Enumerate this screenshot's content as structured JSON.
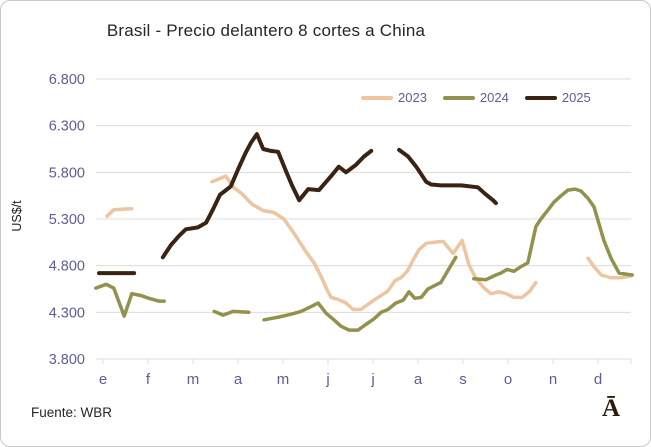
{
  "frame": {
    "source_text": "Fuente: WBR",
    "watermark": "Ā"
  },
  "chart_data": {
    "type": "line",
    "title": "Brasil - Precio delantero 8 cortes a China",
    "xlabel": "",
    "ylabel": "US$/t",
    "units": "US$ per tonne, thousands separator shown with dot",
    "grid": true,
    "legend_position": "top-right",
    "x_tick_labels": [
      "e",
      "f",
      "m",
      "a",
      "m",
      "j",
      "j",
      "a",
      "s",
      "o",
      "n",
      "d"
    ],
    "y_ticks": [
      {
        "label": "6.800",
        "value": 6800
      },
      {
        "label": "6.300",
        "value": 6300
      },
      {
        "label": "5.800",
        "value": 5800
      },
      {
        "label": "5.300",
        "value": 5300
      },
      {
        "label": "4.800",
        "value": 4800
      },
      {
        "label": "4.300",
        "value": 4300
      },
      {
        "label": "3.800",
        "value": 3800
      }
    ],
    "ylim": [
      3800,
      6800
    ],
    "xlim_months": [
      -0.2,
      11.8
    ],
    "colors": {
      "tick_text": "#5e5d95",
      "grid_line": "#dcdcdc",
      "title_text": "#262626"
    },
    "series": [
      {
        "name": "2023",
        "color": "#edc5a1",
        "segments": [
          [
            [
              0.09,
              5330
            ],
            [
              0.24,
              5400
            ],
            [
              0.64,
              5410
            ]
          ],
          [
            [
              2.42,
              5700
            ],
            [
              2.58,
              5730
            ],
            [
              2.73,
              5760
            ],
            [
              2.9,
              5640
            ],
            [
              3.09,
              5570
            ],
            [
              3.31,
              5460
            ],
            [
              3.56,
              5390
            ],
            [
              3.8,
              5370
            ],
            [
              4.02,
              5300
            ],
            [
              4.24,
              5150
            ],
            [
              4.51,
              4950
            ],
            [
              4.69,
              4830
            ],
            [
              4.84,
              4690
            ],
            [
              4.98,
              4540
            ],
            [
              5.07,
              4460
            ],
            [
              5.22,
              4440
            ],
            [
              5.4,
              4400
            ],
            [
              5.56,
              4330
            ],
            [
              5.73,
              4330
            ],
            [
              5.87,
              4380
            ],
            [
              6.02,
              4430
            ],
            [
              6.18,
              4480
            ],
            [
              6.33,
              4530
            ],
            [
              6.49,
              4640
            ],
            [
              6.62,
              4670
            ],
            [
              6.76,
              4740
            ],
            [
              6.89,
              4860
            ],
            [
              7.02,
              4970
            ],
            [
              7.18,
              5040
            ],
            [
              7.36,
              5050
            ],
            [
              7.56,
              5060
            ],
            [
              7.78,
              4930
            ],
            [
              7.98,
              5070
            ],
            [
              8.13,
              4810
            ],
            [
              8.29,
              4660
            ],
            [
              8.47,
              4560
            ],
            [
              8.62,
              4500
            ],
            [
              8.8,
              4520
            ],
            [
              8.96,
              4500
            ],
            [
              9.13,
              4460
            ],
            [
              9.31,
              4460
            ],
            [
              9.47,
              4520
            ],
            [
              9.62,
              4620
            ]
          ],
          [
            [
              10.78,
              4880
            ],
            [
              10.91,
              4790
            ],
            [
              11.07,
              4700
            ],
            [
              11.29,
              4670
            ],
            [
              11.51,
              4670
            ],
            [
              11.73,
              4690
            ]
          ]
        ]
      },
      {
        "name": "2024",
        "color": "#92914e",
        "segments": [
          [
            [
              -0.16,
              4560
            ],
            [
              0.07,
              4600
            ],
            [
              0.24,
              4560
            ],
            [
              0.47,
              4260
            ],
            [
              0.64,
              4500
            ],
            [
              0.84,
              4480
            ],
            [
              1.02,
              4450
            ],
            [
              1.24,
              4420
            ],
            [
              1.36,
              4420
            ]
          ],
          [
            [
              2.47,
              4310
            ],
            [
              2.67,
              4270
            ],
            [
              2.89,
              4310
            ],
            [
              3.24,
              4300
            ]
          ],
          [
            [
              3.58,
              4220
            ],
            [
              3.91,
              4250
            ],
            [
              4.18,
              4280
            ],
            [
              4.4,
              4310
            ],
            [
              4.62,
              4360
            ],
            [
              4.78,
              4400
            ],
            [
              4.96,
              4290
            ],
            [
              5.13,
              4220
            ],
            [
              5.29,
              4150
            ],
            [
              5.47,
              4110
            ],
            [
              5.67,
              4110
            ],
            [
              5.84,
              4170
            ],
            [
              6.02,
              4230
            ],
            [
              6.18,
              4300
            ],
            [
              6.33,
              4330
            ],
            [
              6.51,
              4400
            ],
            [
              6.67,
              4430
            ],
            [
              6.8,
              4520
            ],
            [
              6.93,
              4450
            ],
            [
              7.07,
              4460
            ],
            [
              7.22,
              4550
            ],
            [
              7.38,
              4590
            ],
            [
              7.51,
              4620
            ],
            [
              7.69,
              4770
            ],
            [
              7.84,
              4890
            ]
          ],
          [
            [
              8.24,
              4660
            ],
            [
              8.51,
              4650
            ],
            [
              8.73,
              4700
            ],
            [
              8.84,
              4720
            ],
            [
              8.98,
              4760
            ],
            [
              9.13,
              4740
            ],
            [
              9.29,
              4790
            ],
            [
              9.44,
              4830
            ],
            [
              9.62,
              5220
            ],
            [
              9.73,
              5300
            ],
            [
              9.91,
              5410
            ],
            [
              10.02,
              5480
            ],
            [
              10.18,
              5550
            ],
            [
              10.33,
              5610
            ],
            [
              10.49,
              5620
            ],
            [
              10.62,
              5600
            ],
            [
              10.78,
              5520
            ],
            [
              10.91,
              5430
            ],
            [
              11.13,
              5070
            ],
            [
              11.29,
              4880
            ],
            [
              11.47,
              4720
            ],
            [
              11.62,
              4710
            ],
            [
              11.76,
              4700
            ]
          ]
        ]
      },
      {
        "name": "2025",
        "color": "#3a2312",
        "segments": [
          [
            [
              -0.09,
              4720
            ],
            [
              0.69,
              4720
            ]
          ],
          [
            [
              1.33,
              4890
            ],
            [
              1.51,
              5020
            ],
            [
              1.69,
              5120
            ],
            [
              1.84,
              5190
            ],
            [
              2.11,
              5210
            ],
            [
              2.29,
              5260
            ],
            [
              2.44,
              5400
            ],
            [
              2.6,
              5560
            ],
            [
              2.71,
              5600
            ],
            [
              2.84,
              5650
            ],
            [
              3.0,
              5830
            ],
            [
              3.16,
              6000
            ],
            [
              3.29,
              6120
            ],
            [
              3.42,
              6210
            ],
            [
              3.56,
              6050
            ],
            [
              3.73,
              6030
            ],
            [
              3.89,
              6020
            ],
            [
              4.07,
              5810
            ],
            [
              4.2,
              5660
            ],
            [
              4.36,
              5500
            ],
            [
              4.56,
              5620
            ],
            [
              4.8,
              5610
            ],
            [
              5.07,
              5760
            ],
            [
              5.24,
              5860
            ],
            [
              5.4,
              5800
            ],
            [
              5.62,
              5880
            ],
            [
              5.8,
              5970
            ],
            [
              5.96,
              6030
            ]
          ],
          [
            [
              6.58,
              6040
            ],
            [
              6.78,
              5970
            ],
            [
              6.96,
              5860
            ],
            [
              7.07,
              5780
            ],
            [
              7.18,
              5700
            ],
            [
              7.29,
              5670
            ],
            [
              7.51,
              5660
            ],
            [
              7.73,
              5660
            ],
            [
              7.96,
              5660
            ],
            [
              8.33,
              5640
            ],
            [
              8.49,
              5570
            ],
            [
              8.67,
              5500
            ],
            [
              8.73,
              5470
            ]
          ]
        ]
      }
    ]
  }
}
